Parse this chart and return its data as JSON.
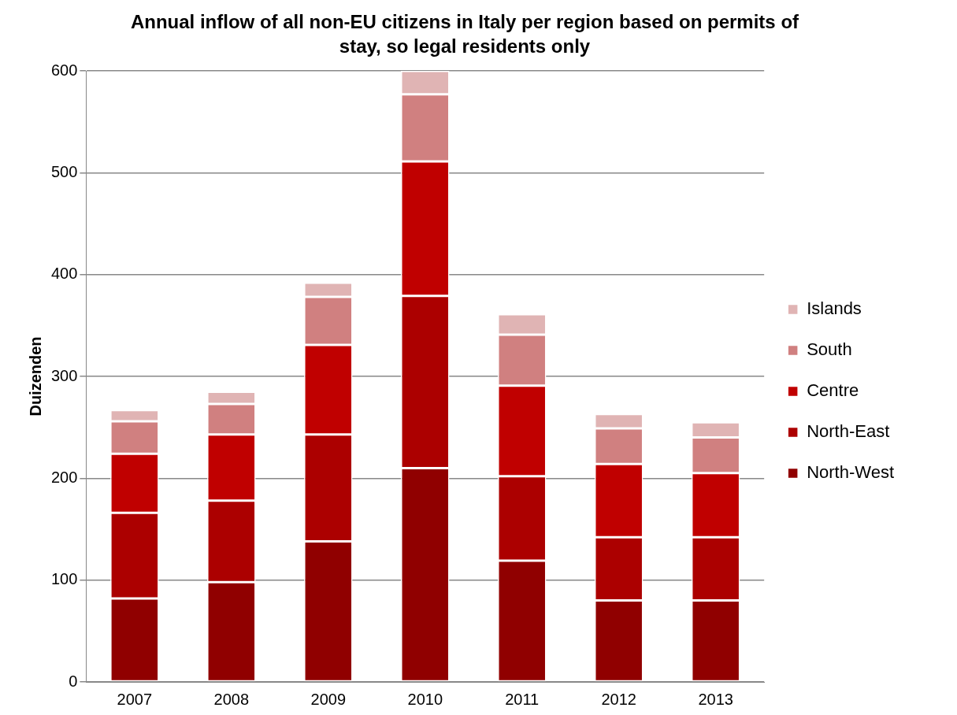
{
  "chart_data": {
    "type": "bar",
    "title": "Annual inflow of all non-EU citizens in Italy per region based on permits of stay, so legal residents only",
    "ylabel": "Duizenden",
    "categories": [
      "2007",
      "2008",
      "2009",
      "2010",
      "2011",
      "2012",
      "2013"
    ],
    "stacked": true,
    "series": [
      {
        "name": "North-West",
        "color": "#900000",
        "values": [
          82,
          98,
          138,
          210,
          119,
          80,
          80
        ]
      },
      {
        "name": "North-East",
        "color": "#ac0000",
        "values": [
          84,
          80,
          105,
          169,
          83,
          62,
          62
        ]
      },
      {
        "name": "Centre",
        "color": "#c00000",
        "values": [
          58,
          65,
          88,
          132,
          89,
          72,
          63
        ]
      },
      {
        "name": "South",
        "color": "#d08080",
        "values": [
          32,
          30,
          47,
          66,
          50,
          35,
          35
        ]
      },
      {
        "name": "Islands",
        "color": "#e0b4b4",
        "values": [
          11,
          12,
          14,
          23,
          20,
          14,
          15
        ]
      }
    ],
    "ylim": [
      0,
      600
    ],
    "yticks": [
      0,
      100,
      200,
      300,
      400,
      500,
      600
    ],
    "grid": "y",
    "legend": "right"
  }
}
